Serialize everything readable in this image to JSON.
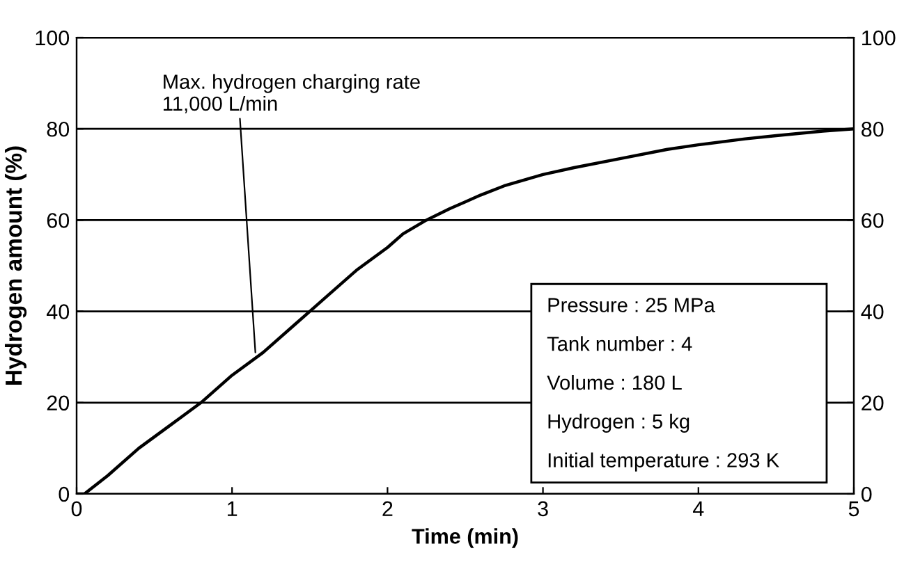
{
  "chart_data": {
    "type": "line",
    "xlabel": "Time (min)",
    "ylabel": "Hydrogen amount (%)",
    "x": [
      0,
      0.05,
      0.2,
      0.4,
      0.6,
      0.8,
      1.0,
      1.2,
      1.4,
      1.5,
      1.6,
      1.8,
      2.0,
      2.1,
      2.25,
      2.4,
      2.5,
      2.6,
      2.75,
      2.9,
      3.0,
      3.2,
      3.5,
      3.8,
      4.0,
      4.3,
      4.5,
      4.8,
      5.0
    ],
    "series": [
      {
        "color": "#000000",
        "values": [
          0,
          0,
          4,
          10,
          15,
          20,
          26,
          31,
          37,
          40,
          43,
          49,
          54,
          57,
          60,
          62.5,
          64,
          65.5,
          67.5,
          69,
          70,
          71.5,
          73.5,
          75.5,
          76.5,
          77.8,
          78.5,
          79.5,
          80
        ]
      }
    ],
    "xlim": [
      0,
      5
    ],
    "xticks": [
      0,
      1,
      2,
      3,
      4,
      5
    ],
    "ylim": [
      0,
      100
    ],
    "yticks": [
      0,
      20,
      40,
      60,
      80,
      100
    ],
    "y2lim": [
      0,
      100
    ],
    "y2ticks": [
      0,
      20,
      40,
      60,
      80,
      100
    ],
    "grid": "y",
    "marker": "none",
    "line_style": "solid",
    "annotations": [
      {
        "text": "Max. hydrogen charging rate\n11,000 L/min",
        "x": 1.15,
        "y": 31
      },
      "Pressure : 25 MPa",
      "Tank number : 4",
      "Volume : 180 L",
      "Hydrogen : 5 kg",
      "Initial temperature : 293 K"
    ]
  }
}
